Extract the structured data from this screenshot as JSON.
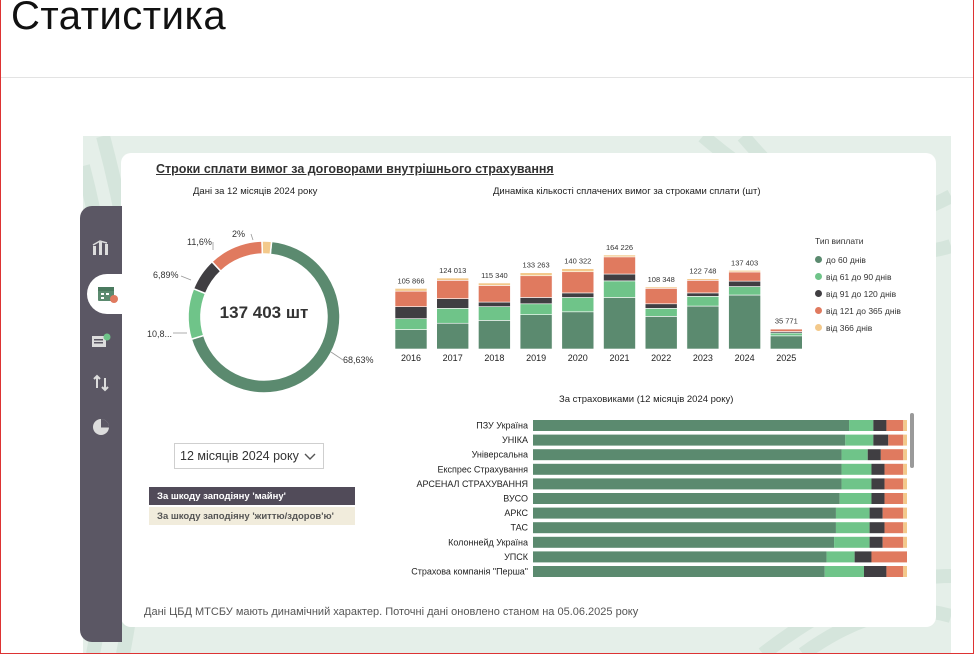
{
  "page": {
    "title": "Статистика"
  },
  "dashboard": {
    "main_title": "Строки сплати вимог за договорами внутрішнього страхування",
    "donut_title": "Дані за 12 місяців 2024 року",
    "bar_title": "Динаміка кількості сплачених вимог за строками сплати (шт)",
    "hbar_title": "За страховиками (12 місяців 2024 року)",
    "footer": "Дані ЦБД МТСБУ мають динамічний характер. Поточні дані оновлено станом на 05.06.2025 року",
    "period_select": {
      "value": "12 місяців 2024 року"
    },
    "filters": {
      "property": "За шкоду заподіяну 'майну'",
      "life": "За шкоду заподіяну 'життю/здоров'ю'"
    },
    "nav_icons": [
      "bar-chart-icon",
      "calendar-icon",
      "document-icon",
      "arrows-icon",
      "pie-chart-icon"
    ]
  },
  "colors": {
    "d60": "#5b8a6f",
    "d90": "#6fc489",
    "d120": "#403e42",
    "d365": "#e07a5f",
    "d366": "#f3c98b"
  },
  "chart_data": [
    {
      "type": "pie",
      "title": "Дані за 12 місяців 2024 року",
      "center_label": "137 403 шт",
      "slices": [
        {
          "name": "до 60 днів",
          "value": 68.63,
          "label": "68,63%"
        },
        {
          "name": "від 61 до 90 днів",
          "value": 10.8,
          "label": "10,8..."
        },
        {
          "name": "від 91 до 120 днів",
          "value": 6.89,
          "label": "6,89%"
        },
        {
          "name": "від 121 до 365 днів",
          "value": 11.6,
          "label": "11,6%"
        },
        {
          "name": "від 366 днів",
          "value": 2,
          "label": "2%"
        }
      ]
    },
    {
      "type": "bar",
      "stacked": true,
      "title": "Динаміка кількості сплачених вимог за строками сплати (шт)",
      "legend_title": "Тип виплати",
      "legend_position": "right",
      "categories": [
        "2016",
        "2017",
        "2018",
        "2019",
        "2020",
        "2021",
        "2022",
        "2023",
        "2024",
        "2025"
      ],
      "totals": [
        105866,
        124013,
        115340,
        133263,
        140322,
        164226,
        108348,
        122748,
        137403,
        35771
      ],
      "total_labels": [
        "105 866",
        "124 013",
        "115 340",
        "133 263",
        "140 322",
        "164 226",
        "108 348",
        "122 748",
        "137 403",
        "35 771"
      ],
      "series": [
        {
          "name": "до 60 днів",
          "values": [
            34000,
            45000,
            50000,
            60000,
            65000,
            90000,
            57000,
            75000,
            94300,
            23000
          ]
        },
        {
          "name": "від 61 до 90 днів",
          "values": [
            19000,
            26000,
            24000,
            19000,
            25000,
            29000,
            14000,
            17000,
            14800,
            5000
          ]
        },
        {
          "name": "від 91 до 120 днів",
          "values": [
            21000,
            17000,
            8000,
            11000,
            8000,
            12000,
            8000,
            6000,
            9500,
            2500
          ]
        },
        {
          "name": "від 121 до 365 днів",
          "values": [
            27000,
            32000,
            29000,
            38000,
            37000,
            30000,
            27000,
            22000,
            16000,
            4500
          ]
        },
        {
          "name": "від 366 днів",
          "values": [
            4866,
            4013,
            4340,
            5263,
            5322,
            3226,
            2348,
            2748,
            2803,
            771
          ]
        }
      ]
    },
    {
      "type": "bar",
      "orientation": "horizontal",
      "stacked_percent": true,
      "title": "За страховиками (12 місяців 2024 року)",
      "categories": [
        "ПЗУ Україна",
        "УНІКА",
        "Універсальна",
        "Експрес Страхування",
        "АРСЕНАЛ СТРАХУВАННЯ",
        "ВУСО",
        "АРКС",
        "ТАС",
        "Колоннейд Україна",
        "УПСК",
        "Страхова компанія \"Перша\""
      ],
      "series": [
        {
          "name": "до 60 днів",
          "values": [
            84.5,
            83.5,
            82.5,
            82.5,
            82.5,
            82.0,
            81.0,
            81.0,
            80.5,
            78.5,
            78.0
          ]
        },
        {
          "name": "від 61 до 90 днів",
          "values": [
            6.5,
            7.5,
            7.0,
            8.0,
            8.0,
            8.5,
            9.0,
            9.0,
            9.5,
            7.5,
            10.5
          ]
        },
        {
          "name": "від 91 до 120 днів",
          "values": [
            3.5,
            4.0,
            3.5,
            3.5,
            3.5,
            3.5,
            3.5,
            4.0,
            3.5,
            4.5,
            6.0
          ]
        },
        {
          "name": "від 121 до 365 днів",
          "values": [
            4.5,
            4.0,
            6.0,
            5.0,
            5.0,
            5.0,
            5.5,
            5.0,
            5.5,
            9.5,
            4.5
          ]
        },
        {
          "name": "від 366 днів",
          "values": [
            1.0,
            1.0,
            1.0,
            1.0,
            1.0,
            1.0,
            1.0,
            1.0,
            1.0,
            0.0,
            1.0
          ]
        }
      ]
    }
  ]
}
